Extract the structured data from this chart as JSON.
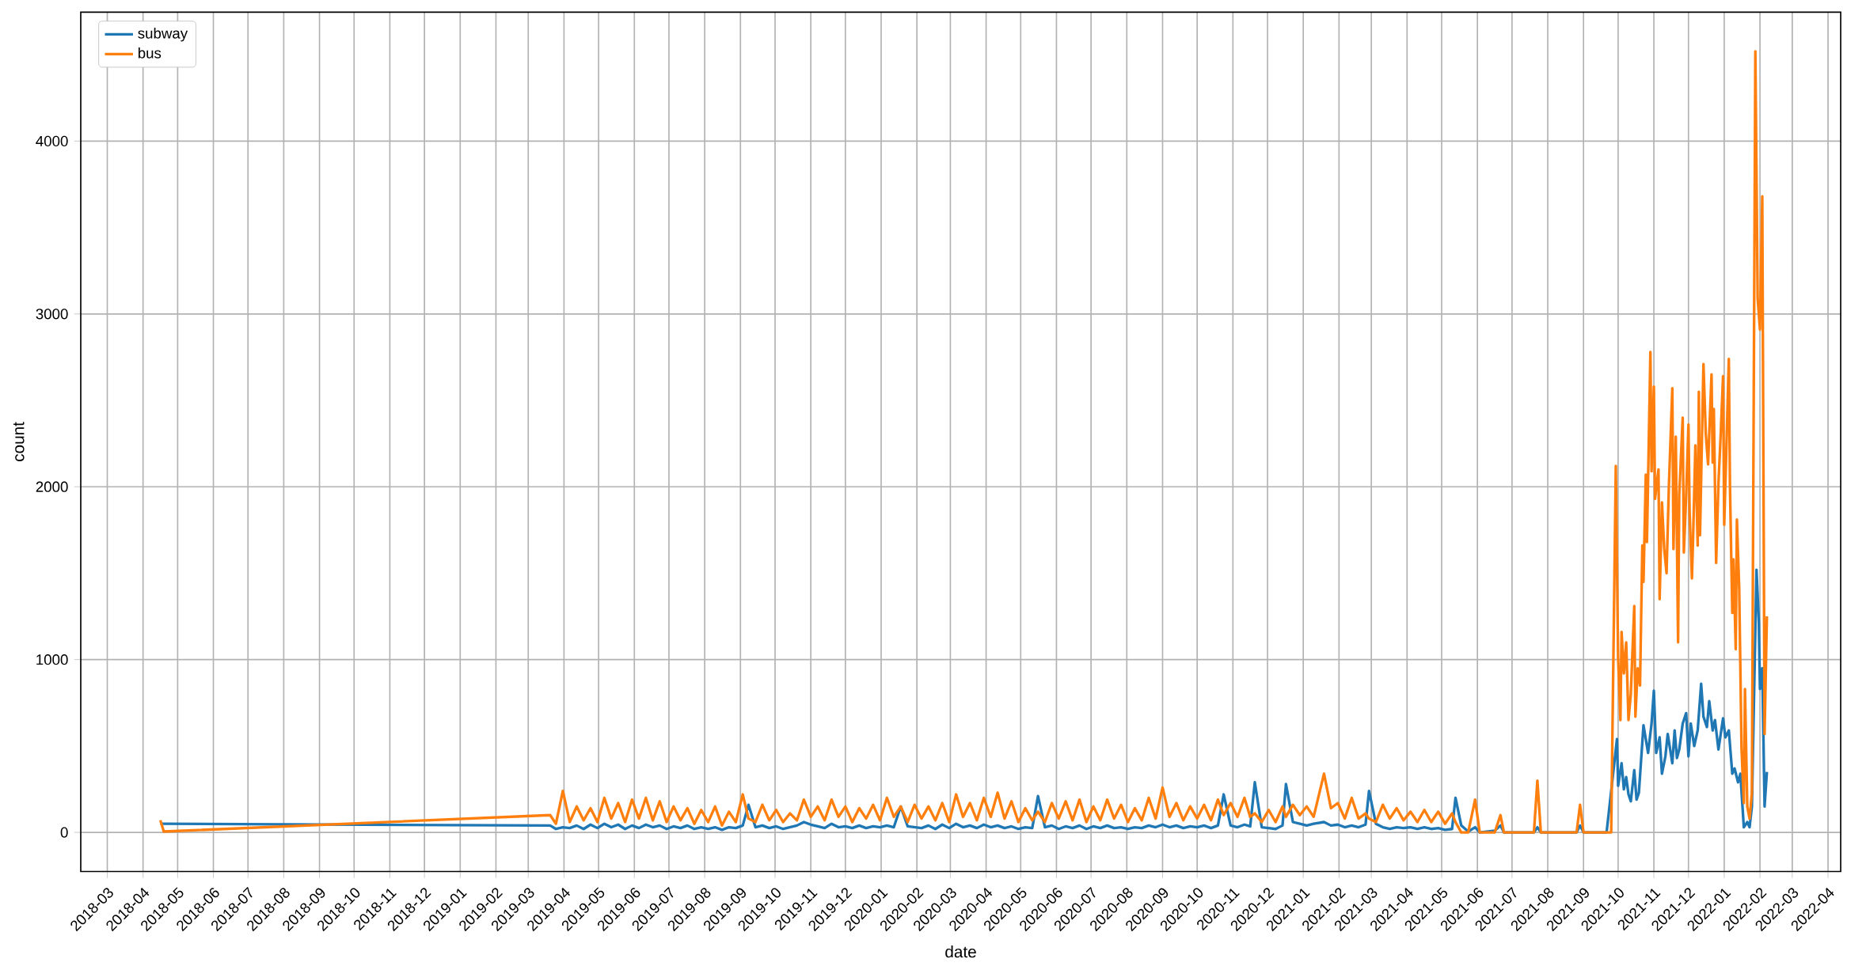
{
  "chart_data": {
    "type": "line",
    "xlabel": "date",
    "ylabel": "count",
    "xlim": [
      "2018-02-06",
      "2022-04-12"
    ],
    "ylim": [
      -226,
      4746
    ],
    "xticks": [
      "2018-03",
      "2018-04",
      "2018-05",
      "2018-06",
      "2018-07",
      "2018-08",
      "2018-09",
      "2018-10",
      "2018-11",
      "2018-12",
      "2019-01",
      "2019-02",
      "2019-03",
      "2019-04",
      "2019-05",
      "2019-06",
      "2019-07",
      "2019-08",
      "2019-09",
      "2019-10",
      "2019-11",
      "2019-12",
      "2020-01",
      "2020-02",
      "2020-03",
      "2020-04",
      "2020-05",
      "2020-06",
      "2020-07",
      "2020-08",
      "2020-09",
      "2020-10",
      "2020-11",
      "2020-12",
      "2021-01",
      "2021-02",
      "2021-03",
      "2021-04",
      "2021-05",
      "2021-06",
      "2021-07",
      "2021-08",
      "2021-09",
      "2021-10",
      "2021-11",
      "2021-12",
      "2022-01",
      "2022-02",
      "2022-03",
      "2022-04"
    ],
    "yticks": [
      0,
      1000,
      2000,
      3000,
      4000
    ],
    "grid": true,
    "legend": "top left",
    "line_style": "solid",
    "marker": "none",
    "series": [
      {
        "name": "subway",
        "color": "#1f77b4",
        "x": [
          "2018-04-16",
          "2019-03-20",
          "2019-03-25",
          "2019-03-31",
          "2019-04-06",
          "2019-04-12",
          "2019-04-18",
          "2019-04-24",
          "2019-04-30",
          "2019-05-06",
          "2019-05-12",
          "2019-05-18",
          "2019-05-24",
          "2019-05-30",
          "2019-06-05",
          "2019-06-11",
          "2019-06-17",
          "2019-06-23",
          "2019-06-29",
          "2019-07-05",
          "2019-07-11",
          "2019-07-17",
          "2019-07-23",
          "2019-07-29",
          "2019-08-04",
          "2019-08-10",
          "2019-08-16",
          "2019-08-22",
          "2019-08-28",
          "2019-09-03",
          "2019-09-08",
          "2019-09-14",
          "2019-09-20",
          "2019-09-26",
          "2019-10-02",
          "2019-10-08",
          "2019-10-14",
          "2019-10-20",
          "2019-10-26",
          "2019-11-01",
          "2019-11-07",
          "2019-11-13",
          "2019-11-19",
          "2019-11-25",
          "2019-12-01",
          "2019-12-07",
          "2019-12-13",
          "2019-12-19",
          "2019-12-25",
          "2019-12-31",
          "2020-01-06",
          "2020-01-12",
          "2020-01-18",
          "2020-01-24",
          "2020-01-30",
          "2020-02-05",
          "2020-02-11",
          "2020-02-17",
          "2020-02-23",
          "2020-02-29",
          "2020-03-06",
          "2020-03-12",
          "2020-03-18",
          "2020-03-24",
          "2020-03-30",
          "2020-04-05",
          "2020-04-11",
          "2020-04-17",
          "2020-04-23",
          "2020-04-29",
          "2020-05-05",
          "2020-05-11",
          "2020-05-16",
          "2020-05-22",
          "2020-05-28",
          "2020-06-03",
          "2020-06-09",
          "2020-06-15",
          "2020-06-21",
          "2020-06-27",
          "2020-07-03",
          "2020-07-09",
          "2020-07-15",
          "2020-07-21",
          "2020-07-27",
          "2020-08-02",
          "2020-08-08",
          "2020-08-14",
          "2020-08-20",
          "2020-08-26",
          "2020-09-01",
          "2020-09-07",
          "2020-09-13",
          "2020-09-19",
          "2020-09-25",
          "2020-10-01",
          "2020-10-07",
          "2020-10-13",
          "2020-10-19",
          "2020-10-24",
          "2020-10-30",
          "2020-11-05",
          "2020-11-11",
          "2020-11-16",
          "2020-11-20",
          "2020-11-26",
          "2020-12-02",
          "2020-12-08",
          "2020-12-14",
          "2020-12-17",
          "2020-12-23",
          "2020-12-29",
          "2021-01-04",
          "2021-01-10",
          "2021-01-19",
          "2021-01-25",
          "2021-01-31",
          "2021-02-06",
          "2021-02-12",
          "2021-02-18",
          "2021-02-24",
          "2021-02-27",
          "2021-03-05",
          "2021-03-11",
          "2021-03-17",
          "2021-03-23",
          "2021-03-29",
          "2021-04-04",
          "2021-04-10",
          "2021-04-16",
          "2021-04-22",
          "2021-04-28",
          "2021-05-04",
          "2021-05-10",
          "2021-05-13",
          "2021-05-18",
          "2021-05-24",
          "2021-05-30",
          "2021-06-03",
          "2021-06-16",
          "2021-06-21",
          "2021-06-24",
          "2021-07-20",
          "2021-07-23",
          "2021-07-26",
          "2021-08-26",
          "2021-08-29",
          "2021-09-01",
          "2021-09-21",
          "2021-09-30",
          "2021-10-01",
          "2021-10-04",
          "2021-10-06",
          "2021-10-08",
          "2021-10-10",
          "2021-10-12",
          "2021-10-15",
          "2021-10-17",
          "2021-10-19",
          "2021-10-23",
          "2021-10-27",
          "2021-10-30",
          "2021-11-01",
          "2021-11-03",
          "2021-11-06",
          "2021-11-08",
          "2021-11-11",
          "2021-11-13",
          "2021-11-17",
          "2021-11-19",
          "2021-11-21",
          "2021-11-23",
          "2021-11-26",
          "2021-11-29",
          "2021-12-01",
          "2021-12-03",
          "2021-12-06",
          "2021-12-09",
          "2021-12-12",
          "2021-12-14",
          "2021-12-17",
          "2021-12-19",
          "2021-12-22",
          "2021-12-24",
          "2021-12-27",
          "2021-12-31",
          "2022-01-02",
          "2022-01-05",
          "2022-01-08",
          "2022-01-10",
          "2022-01-13",
          "2022-01-15",
          "2022-01-18",
          "2022-01-21",
          "2022-01-23",
          "2022-01-25",
          "2022-01-29",
          "2022-01-31",
          "2022-02-01",
          "2022-02-03",
          "2022-02-05",
          "2022-02-07"
        ],
        "values": [
          50,
          40,
          20,
          30,
          25,
          40,
          20,
          45,
          25,
          50,
          30,
          45,
          20,
          40,
          25,
          45,
          30,
          40,
          20,
          35,
          25,
          40,
          20,
          30,
          20,
          30,
          15,
          30,
          25,
          40,
          160,
          30,
          40,
          25,
          35,
          20,
          30,
          40,
          60,
          45,
          35,
          25,
          50,
          30,
          35,
          25,
          40,
          25,
          35,
          30,
          40,
          30,
          150,
          35,
          30,
          25,
          40,
          20,
          45,
          25,
          50,
          30,
          40,
          25,
          45,
          30,
          40,
          25,
          35,
          20,
          30,
          25,
          210,
          30,
          40,
          20,
          35,
          25,
          40,
          20,
          35,
          25,
          40,
          25,
          30,
          20,
          30,
          25,
          40,
          30,
          45,
          30,
          40,
          25,
          35,
          30,
          40,
          25,
          40,
          220,
          40,
          30,
          45,
          35,
          290,
          30,
          25,
          20,
          40,
          280,
          60,
          50,
          40,
          50,
          60,
          40,
          45,
          30,
          40,
          30,
          45,
          240,
          50,
          30,
          20,
          30,
          25,
          30,
          20,
          30,
          20,
          25,
          15,
          20,
          200,
          40,
          5,
          30,
          0,
          10,
          40,
          0,
          0,
          30,
          0,
          0,
          40,
          0,
          0,
          540,
          270,
          400,
          250,
          320,
          220,
          180,
          360,
          190,
          230,
          620,
          460,
          630,
          820,
          460,
          550,
          340,
          440,
          570,
          400,
          590,
          430,
          480,
          630,
          690,
          440,
          630,
          500,
          590,
          860,
          670,
          610,
          760,
          590,
          650,
          480,
          660,
          550,
          590,
          340,
          370,
          290,
          340,
          30,
          60,
          30,
          150,
          1520,
          1220,
          830,
          950,
          150,
          350
        ]
      },
      {
        "name": "bus",
        "color": "#ff7f0e",
        "x": [
          "2018-04-16",
          "2018-04-19",
          "2019-03-20",
          "2019-03-25",
          "2019-03-31",
          "2019-04-06",
          "2019-04-12",
          "2019-04-18",
          "2019-04-24",
          "2019-04-30",
          "2019-05-06",
          "2019-05-12",
          "2019-05-18",
          "2019-05-24",
          "2019-05-30",
          "2019-06-05",
          "2019-06-11",
          "2019-06-17",
          "2019-06-23",
          "2019-06-29",
          "2019-07-05",
          "2019-07-11",
          "2019-07-17",
          "2019-07-23",
          "2019-07-29",
          "2019-08-04",
          "2019-08-10",
          "2019-08-16",
          "2019-08-22",
          "2019-08-28",
          "2019-09-03",
          "2019-09-08",
          "2019-09-14",
          "2019-09-20",
          "2019-09-26",
          "2019-10-02",
          "2019-10-08",
          "2019-10-14",
          "2019-10-20",
          "2019-10-26",
          "2019-11-01",
          "2019-11-07",
          "2019-11-13",
          "2019-11-19",
          "2019-11-25",
          "2019-12-01",
          "2019-12-07",
          "2019-12-13",
          "2019-12-19",
          "2019-12-25",
          "2019-12-31",
          "2020-01-06",
          "2020-01-12",
          "2020-01-18",
          "2020-01-24",
          "2020-01-30",
          "2020-02-05",
          "2020-02-11",
          "2020-02-17",
          "2020-02-23",
          "2020-02-29",
          "2020-03-06",
          "2020-03-12",
          "2020-03-18",
          "2020-03-24",
          "2020-03-30",
          "2020-04-05",
          "2020-04-11",
          "2020-04-17",
          "2020-04-23",
          "2020-04-29",
          "2020-05-05",
          "2020-05-11",
          "2020-05-16",
          "2020-05-22",
          "2020-05-28",
          "2020-06-03",
          "2020-06-09",
          "2020-06-15",
          "2020-06-21",
          "2020-06-27",
          "2020-07-03",
          "2020-07-09",
          "2020-07-15",
          "2020-07-21",
          "2020-07-27",
          "2020-08-02",
          "2020-08-08",
          "2020-08-14",
          "2020-08-20",
          "2020-08-26",
          "2020-09-01",
          "2020-09-07",
          "2020-09-13",
          "2020-09-19",
          "2020-09-25",
          "2020-10-01",
          "2020-10-07",
          "2020-10-13",
          "2020-10-19",
          "2020-10-24",
          "2020-10-30",
          "2020-11-05",
          "2020-11-11",
          "2020-11-16",
          "2020-11-20",
          "2020-11-26",
          "2020-12-02",
          "2020-12-08",
          "2020-12-14",
          "2020-12-17",
          "2020-12-23",
          "2020-12-29",
          "2021-01-04",
          "2021-01-10",
          "2021-01-19",
          "2021-01-25",
          "2021-01-31",
          "2021-02-06",
          "2021-02-12",
          "2021-02-18",
          "2021-02-24",
          "2021-02-27",
          "2021-03-05",
          "2021-03-11",
          "2021-03-17",
          "2021-03-23",
          "2021-03-29",
          "2021-04-04",
          "2021-04-10",
          "2021-04-16",
          "2021-04-22",
          "2021-04-28",
          "2021-05-04",
          "2021-05-10",
          "2021-05-13",
          "2021-05-18",
          "2021-05-24",
          "2021-05-30",
          "2021-06-03",
          "2021-06-16",
          "2021-06-21",
          "2021-06-24",
          "2021-07-20",
          "2021-07-23",
          "2021-07-26",
          "2021-08-26",
          "2021-08-29",
          "2021-09-01",
          "2021-09-25",
          "2021-09-29",
          "2021-10-01",
          "2021-10-03",
          "2021-10-04",
          "2021-10-06",
          "2021-10-08",
          "2021-10-10",
          "2021-10-12",
          "2021-10-15",
          "2021-10-16",
          "2021-10-18",
          "2021-10-20",
          "2021-10-22",
          "2021-10-23",
          "2021-10-25",
          "2021-10-26",
          "2021-10-29",
          "2021-10-30",
          "2021-11-01",
          "2021-11-02",
          "2021-11-05",
          "2021-11-06",
          "2021-11-08",
          "2021-11-10",
          "2021-11-12",
          "2021-11-14",
          "2021-11-17",
          "2021-11-18",
          "2021-11-20",
          "2021-11-22",
          "2021-11-23",
          "2021-11-26",
          "2021-11-27",
          "2021-11-29",
          "2021-12-01",
          "2021-12-02",
          "2021-12-04",
          "2021-12-05",
          "2021-12-07",
          "2021-12-09",
          "2021-12-10",
          "2021-12-11",
          "2021-12-14",
          "2021-12-16",
          "2021-12-18",
          "2021-12-21",
          "2021-12-22",
          "2021-12-23",
          "2021-12-25",
          "2021-12-27",
          "2021-12-29",
          "2021-12-31",
          "2022-01-01",
          "2022-01-03",
          "2022-01-05",
          "2022-01-06",
          "2022-01-08",
          "2022-01-09",
          "2022-01-11",
          "2022-01-12",
          "2022-01-14",
          "2022-01-16",
          "2022-01-18",
          "2022-01-19",
          "2022-01-21",
          "2022-01-23",
          "2022-01-25",
          "2022-01-28",
          "2022-01-30",
          "2022-02-01",
          "2022-02-03",
          "2022-02-05",
          "2022-02-07"
        ],
        "values": [
          70,
          5,
          100,
          50,
          240,
          60,
          150,
          70,
          140,
          60,
          200,
          80,
          170,
          60,
          190,
          80,
          200,
          70,
          180,
          60,
          150,
          70,
          140,
          50,
          130,
          60,
          150,
          40,
          120,
          60,
          220,
          80,
          60,
          160,
          70,
          130,
          60,
          110,
          70,
          190,
          90,
          150,
          70,
          190,
          90,
          150,
          60,
          140,
          80,
          160,
          70,
          200,
          90,
          150,
          60,
          160,
          80,
          150,
          70,
          170,
          60,
          220,
          90,
          170,
          70,
          200,
          90,
          230,
          80,
          180,
          60,
          140,
          70,
          120,
          60,
          170,
          80,
          180,
          70,
          190,
          60,
          150,
          70,
          190,
          80,
          160,
          60,
          140,
          70,
          200,
          80,
          260,
          90,
          170,
          70,
          150,
          80,
          160,
          70,
          190,
          100,
          170,
          90,
          200,
          90,
          110,
          60,
          130,
          60,
          150,
          90,
          160,
          100,
          150,
          90,
          340,
          140,
          170,
          80,
          200,
          80,
          110,
          80,
          60,
          160,
          80,
          140,
          70,
          120,
          60,
          130,
          60,
          120,
          50,
          110,
          60,
          0,
          0,
          190,
          0,
          0,
          100,
          0,
          0,
          300,
          0,
          0,
          160,
          0,
          0,
          2120,
          1010,
          650,
          1160,
          920,
          1100,
          650,
          800,
          1310,
          670,
          950,
          850,
          1660,
          1450,
          2070,
          1680,
          2780,
          2090,
          2580,
          1930,
          2100,
          1350,
          1910,
          1640,
          1500,
          2000,
          2570,
          1640,
          2290,
          1100,
          1950,
          2400,
          1620,
          1950,
          2360,
          1850,
          1470,
          1700,
          2240,
          1660,
          2550,
          1720,
          2710,
          2310,
          2130,
          2650,
          2140,
          2450,
          1560,
          2020,
          2310,
          2640,
          1780,
          2250,
          2740,
          2000,
          1270,
          1580,
          1060,
          1810,
          1410,
          490,
          170,
          830,
          150,
          80,
          230,
          4520,
          3090,
          2910,
          3680,
          570,
          1250
        ]
      }
    ]
  }
}
